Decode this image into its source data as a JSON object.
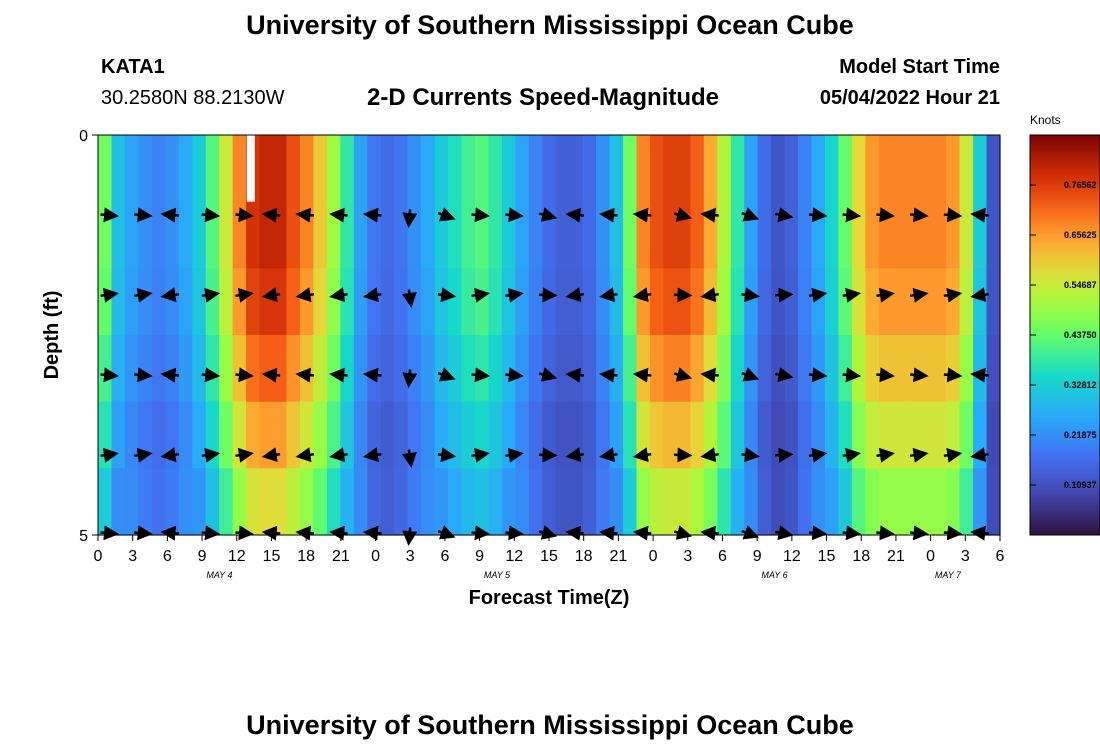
{
  "header": {
    "title": "University of Southern Mississippi Ocean Cube",
    "station": "KATA1",
    "coords": "30.2580N  88.2130W",
    "chart_title": "2-D Currents Speed-Magnitude",
    "model_start_label": "Model Start Time",
    "model_start_value": "05/04/2022 Hour 21"
  },
  "footer": {
    "title": "University of Southern Mississippi Ocean Cube"
  },
  "chart_data": {
    "type": "heatmap",
    "title": "2-D Currents Speed-Magnitude",
    "xlabel": "Forecast Time(Z)",
    "ylabel": "Depth (ft)",
    "ylim": [
      0,
      5
    ],
    "y_ticks": [
      "0",
      "5"
    ],
    "x_ticks": [
      "0",
      "3",
      "6",
      "9",
      "12",
      "15",
      "18",
      "21",
      "0",
      "3",
      "6",
      "9",
      "12",
      "15",
      "18",
      "21",
      "0",
      "3",
      "6",
      "9",
      "12",
      "15",
      "18",
      "21",
      "0",
      "3",
      "6"
    ],
    "date_labels": [
      {
        "label": "MAY 4",
        "at_tick": 3.5
      },
      {
        "label": "MAY 5",
        "at_tick": 11.5
      },
      {
        "label": "MAY 6",
        "at_tick": 19.5
      },
      {
        "label": "MAY 7",
        "at_tick": 24.5
      }
    ],
    "colorbar": {
      "unit": "Knots",
      "min": 0,
      "max": 0.875,
      "ticks": [
        "0.76562",
        "0.65625",
        "0.54687",
        "0.43750",
        "0.32812",
        "0.21875",
        "0.10937"
      ],
      "tick_values": [
        0.765625,
        0.65625,
        0.546875,
        0.4375,
        0.328125,
        0.21875,
        0.109375
      ]
    },
    "speed_profile_time": [
      0.45,
      0.3,
      0.25,
      0.22,
      0.2,
      0.22,
      0.26,
      0.32,
      0.42,
      0.55,
      0.68,
      0.78,
      0.8,
      0.8,
      0.74,
      0.68,
      0.6,
      0.5,
      0.38,
      0.25,
      0.18,
      0.16,
      0.18,
      0.22,
      0.26,
      0.32,
      0.36,
      0.4,
      0.42,
      0.38,
      0.32,
      0.25,
      0.2,
      0.16,
      0.14,
      0.14,
      0.16,
      0.22,
      0.3,
      0.45,
      0.68,
      0.74,
      0.76,
      0.76,
      0.72,
      0.64,
      0.52,
      0.38,
      0.25,
      0.16,
      0.12,
      0.14,
      0.2,
      0.26,
      0.34,
      0.44,
      0.58,
      0.66,
      0.68,
      0.68,
      0.68,
      0.68,
      0.68,
      0.66,
      0.55,
      0.32,
      0.12
    ],
    "depth_factor": [
      1.0,
      1.0,
      0.97,
      0.9,
      0.82,
      0.72
    ],
    "surface_gap_cell": 23,
    "vector_columns": [
      0,
      1,
      2,
      3,
      4,
      5,
      6,
      7,
      8,
      9,
      10,
      11,
      12,
      13,
      14,
      15,
      16,
      17,
      18,
      19,
      20,
      21,
      22,
      23,
      24,
      25,
      26
    ],
    "vector_angles_deg": [
      0,
      0,
      180,
      0,
      0,
      180,
      180,
      180,
      180,
      270,
      -15,
      0,
      0,
      -10,
      180,
      180,
      180,
      -10,
      180,
      -15,
      -5,
      0,
      0,
      0,
      0,
      0,
      180
    ]
  }
}
